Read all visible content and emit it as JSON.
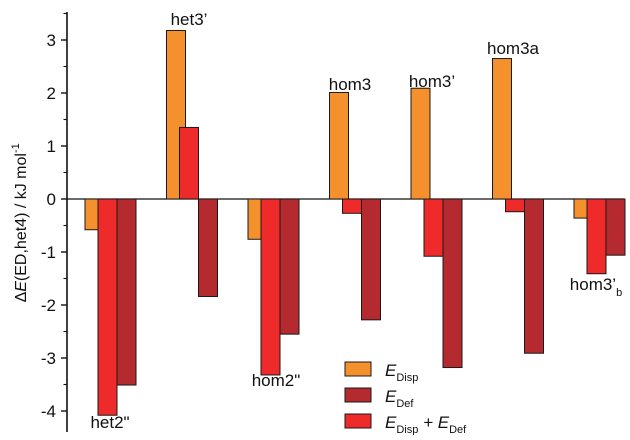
{
  "chart_data": {
    "type": "bar",
    "title": "",
    "xlabel": "",
    "ylabel": "ΔE(ED,het4) / kJ mol⁻¹",
    "ylim": [
      -4.3,
      3.6
    ],
    "yticks": [
      "3",
      "2",
      "1",
      "0",
      "-1",
      "-2",
      "-3",
      "-4"
    ],
    "ytick_values": [
      3,
      2,
      1,
      0,
      -1,
      -2,
      -3,
      -4
    ],
    "grid": false,
    "legend_position": "bottom-right",
    "categories": [
      "het2''",
      "het3'",
      "hom2''",
      "hom3",
      "hom3'",
      "hom3a",
      "hom3'b"
    ],
    "category_labels": [
      {
        "text": "het2\"",
        "sub": ""
      },
      {
        "text": "het3’",
        "sub": ""
      },
      {
        "text": "hom2\"",
        "sub": ""
      },
      {
        "text": "hom3",
        "sub": ""
      },
      {
        "text": "hom3’",
        "sub": ""
      },
      {
        "text": "hom3a",
        "sub": ""
      },
      {
        "text": "hom3’",
        "sub": "b"
      }
    ],
    "series": [
      {
        "name": "E_Disp",
        "color": "#f5912d",
        "values": [
          -0.58,
          3.18,
          -0.76,
          2.01,
          2.09,
          2.65,
          -0.36
        ]
      },
      {
        "name": "E_Disp + E_Def",
        "color": "#ee2a2a",
        "values": [
          -4.08,
          1.35,
          -3.32,
          -0.27,
          -1.08,
          -0.24,
          -1.41
        ]
      },
      {
        "name": "E_Def",
        "color": "#b42a2e",
        "values": [
          -3.51,
          -1.84,
          -2.55,
          -2.28,
          -3.18,
          -2.91,
          -1.06
        ]
      }
    ],
    "legend": [
      {
        "main": "E",
        "sub": "Disp",
        "color": "#f5912d"
      },
      {
        "main": "E",
        "sub": "Def",
        "color": "#b42a2e"
      },
      {
        "main": "E",
        "sub": "Disp",
        "main2": " + E",
        "sub2": "Def",
        "color": "#ee2a2a"
      }
    ]
  }
}
